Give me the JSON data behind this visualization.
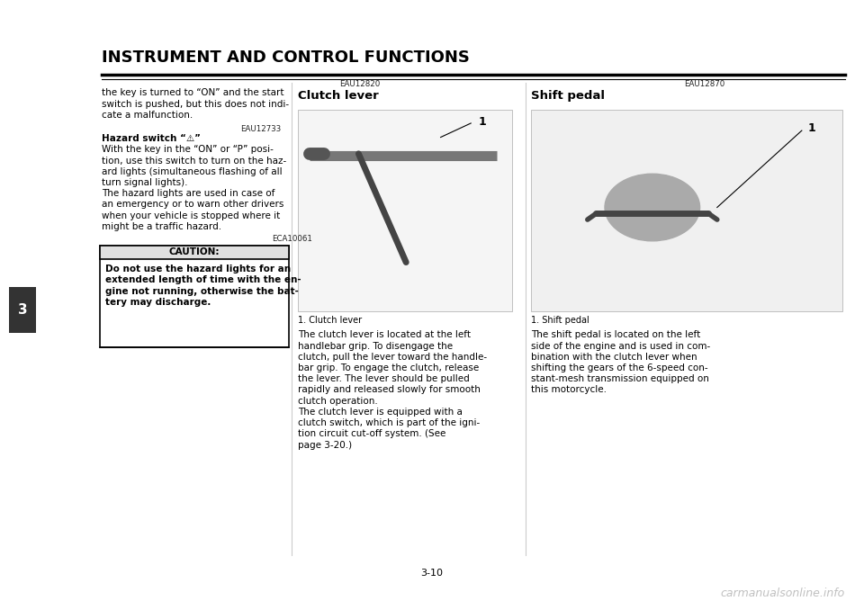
{
  "bg_color": "#ffffff",
  "page_width": 9.6,
  "page_height": 6.78,
  "header_title": "INSTRUMENT AND CONTROL FUNCTIONS",
  "page_number": "3-10",
  "tab_number": "3",
  "watermark": "carmanualsonline.info",
  "clutch_ref": "EAU12820",
  "clutch_title": "Clutch lever",
  "clutch_caption": "1. Clutch lever",
  "clutch_body_lines": [
    "The clutch lever is located at the left",
    "handlebar grip. To disengage the",
    "clutch, pull the lever toward the handle-",
    "bar grip. To engage the clutch, release",
    "the lever. The lever should be pulled",
    "rapidly and released slowly for smooth",
    "clutch operation.",
    "The clutch lever is equipped with a",
    "clutch switch, which is part of the igni-",
    "tion circuit cut-off system. (See",
    "page 3-20.)"
  ],
  "shift_ref": "EAU12870",
  "shift_title": "Shift pedal",
  "shift_caption": "1. Shift pedal",
  "shift_body_lines": [
    "The shift pedal is located on the left",
    "side of the engine and is used in com-",
    "bination with the clutch lever when",
    "shifting the gears of the 6-speed con-",
    "stant-mesh transmission equipped on",
    "this motorcycle."
  ],
  "left_col_lines": [
    "the key is turned to “ON” and the start",
    "switch is pushed, but this does not indi-",
    "cate a malfunction."
  ],
  "hazard_ref": "EAU12733",
  "hazard_title": "Hazard switch “⚠”",
  "hazard_lines": [
    "With the key in the “ON” or “P” posi-",
    "tion, use this switch to turn on the haz-",
    "ard lights (simultaneous flashing of all",
    "turn signal lights).",
    "The hazard lights are used in case of",
    "an emergency or to warn other drivers",
    "when your vehicle is stopped where it",
    "might be a traffic hazard."
  ],
  "eca_ref": "ECA10061",
  "caution_title": "CAUTION:",
  "caution_lines": [
    "Do not use the hazard lights for an",
    "extended length of time with the en-",
    "gine not running, otherwise the bat-",
    "tery may discharge."
  ]
}
